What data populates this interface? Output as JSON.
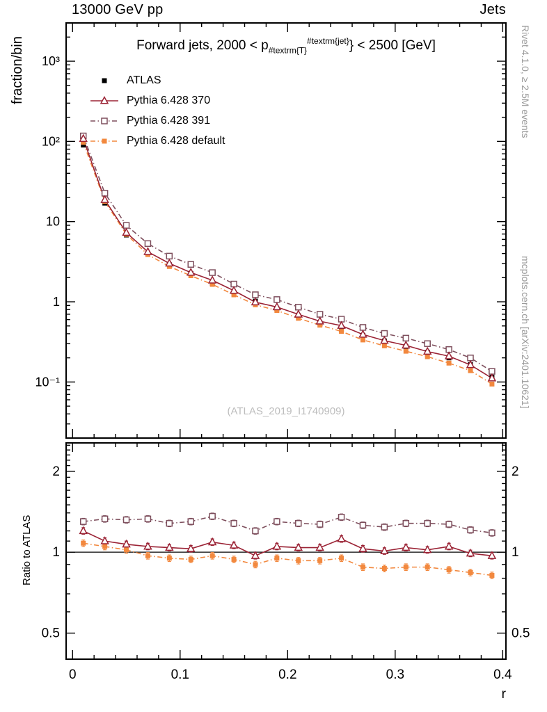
{
  "header": {
    "left": "13000 GeV pp",
    "right": "Jets"
  },
  "title": {
    "prefix": "Forward jets, 2000 < p",
    "sub": "#textrm{T}",
    "sup": "#textrm{jet}",
    "suffix": "} < 2500 [GeV]"
  },
  "watermark": "(ATLAS_2019_I1740909)",
  "side_notes": {
    "top": "Rivet 4.1.0, ≥ 2.5M events",
    "bottom": "mcplots.cern.ch [arXiv:2401.10621]"
  },
  "chart_data": {
    "type": "line",
    "title": "Forward jets, 2000 < p_{#textrm{T}}^{#textrm{jet}} < 2500 [GeV]",
    "xlabel": "r",
    "grid": false,
    "legend_position": "top-left",
    "xlim": [
      -0.006,
      0.403
    ],
    "xticks": [
      {
        "v": 0,
        "label": "0"
      },
      {
        "v": 0.1,
        "label": "0.1"
      },
      {
        "v": 0.2,
        "label": "0.2"
      },
      {
        "v": 0.3,
        "label": "0.3"
      },
      {
        "v": 0.4,
        "label": "0.4"
      }
    ],
    "panels": [
      {
        "name": "main",
        "ylabel": "fraction/bin",
        "yscale": "log",
        "ylim": [
          0.02,
          3000
        ],
        "yticks": [
          {
            "v": 0.1,
            "label": "10⁻¹"
          },
          {
            "v": 1,
            "label": "1"
          },
          {
            "v": 10,
            "label": "10"
          },
          {
            "v": 100,
            "label": "10²"
          },
          {
            "v": 1000,
            "label": "10³"
          }
        ]
      },
      {
        "name": "ratio",
        "ylabel": "Ratio to ATLAS",
        "yscale": "log",
        "ylim": [
          0.4,
          2.55
        ],
        "yticks": [
          {
            "v": 0.5,
            "label": "0.5"
          },
          {
            "v": 1,
            "label": "1"
          },
          {
            "v": 2,
            "label": "2"
          }
        ]
      }
    ],
    "x": [
      0.01,
      0.03,
      0.05,
      0.07,
      0.09,
      0.11,
      0.13,
      0.15,
      0.17,
      0.19,
      0.21,
      0.23,
      0.25,
      0.27,
      0.29,
      0.31,
      0.33,
      0.35,
      0.37,
      0.39
    ],
    "series": [
      {
        "name": "ATLAS",
        "ref": true,
        "z": 1,
        "color": "#000000",
        "marker": "square-filled",
        "line": "none",
        "values": [
          90,
          17,
          6.8,
          4.0,
          2.9,
          2.25,
          1.7,
          1.3,
          1.02,
          0.82,
          0.67,
          0.55,
          0.45,
          0.38,
          0.325,
          0.275,
          0.235,
          0.2,
          0.165,
          0.115
        ]
      },
      {
        "name": "Pythia 6.428 370",
        "ref": false,
        "z": 4,
        "color": "#9b2335",
        "marker": "triangle-open",
        "line": "solid",
        "ratio": [
          1.2,
          1.1,
          1.07,
          1.05,
          1.04,
          1.03,
          1.09,
          1.06,
          0.97,
          1.05,
          1.04,
          1.04,
          1.12,
          1.03,
          1.01,
          1.04,
          1.02,
          1.05,
          0.99,
          0.97
        ]
      },
      {
        "name": "Pythia 6.428 391",
        "ref": false,
        "z": 2,
        "color": "#7e4f5d",
        "marker": "square-open",
        "line": "dashdot",
        "ratio": [
          1.3,
          1.33,
          1.32,
          1.33,
          1.28,
          1.3,
          1.36,
          1.28,
          1.2,
          1.3,
          1.28,
          1.27,
          1.35,
          1.26,
          1.24,
          1.28,
          1.28,
          1.27,
          1.21,
          1.18
        ]
      },
      {
        "name": "Pythia 6.428 default",
        "ref": false,
        "z": 3,
        "color": "#f2883e",
        "marker": "square-filled",
        "line": "dashdot",
        "ratio": [
          1.08,
          1.05,
          1.02,
          0.97,
          0.95,
          0.94,
          0.97,
          0.94,
          0.9,
          0.95,
          0.93,
          0.93,
          0.95,
          0.88,
          0.87,
          0.88,
          0.88,
          0.86,
          0.84,
          0.82
        ]
      }
    ]
  }
}
